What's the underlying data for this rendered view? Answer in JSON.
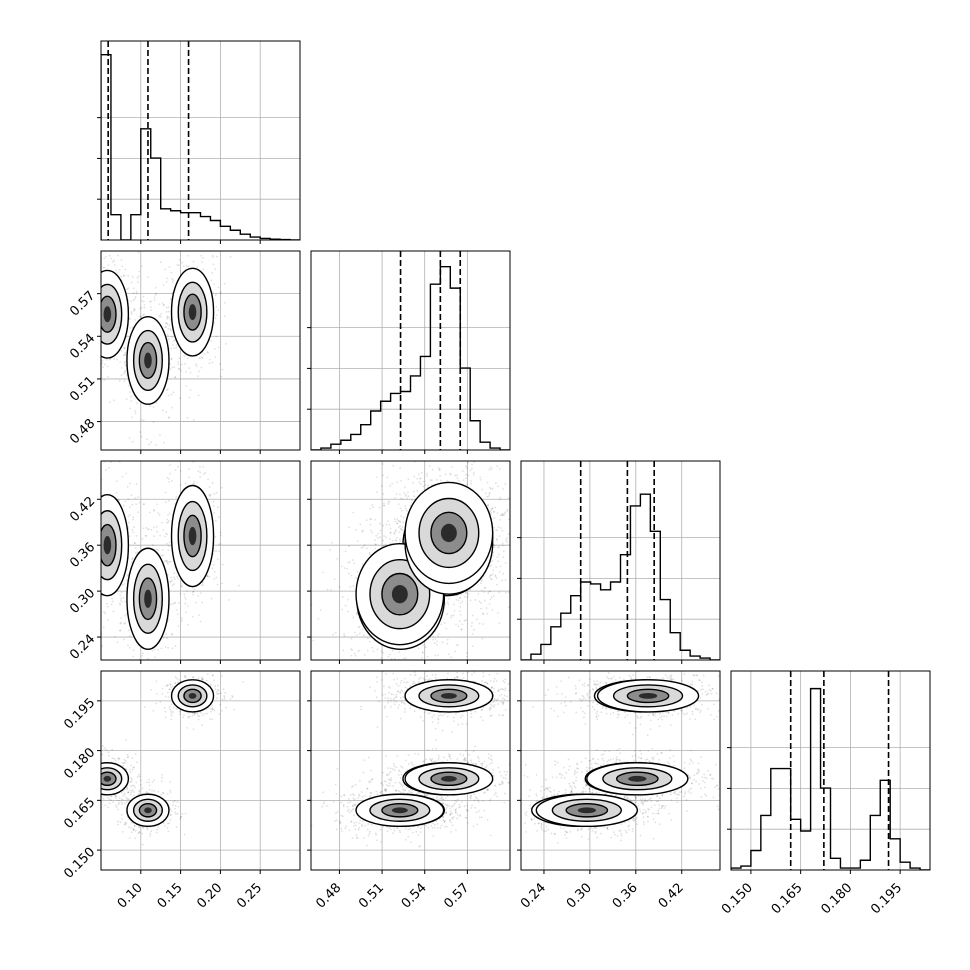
{
  "chart_data": {
    "type": "corner",
    "variables": [
      {
        "range": [
          0.05,
          0.3
        ],
        "ticks": [
          0.1,
          0.15,
          0.2,
          0.25
        ],
        "tick_labels": [
          "0.10",
          "0.15",
          "0.20",
          "0.25"
        ]
      },
      {
        "range": [
          0.46,
          0.6
        ],
        "ticks": [
          0.48,
          0.51,
          0.54,
          0.57
        ],
        "tick_labels": [
          "0.48",
          "0.51",
          "0.54",
          "0.57"
        ]
      },
      {
        "range": [
          0.21,
          0.47
        ],
        "ticks": [
          0.24,
          0.3,
          0.36,
          0.42
        ],
        "tick_labels": [
          "0.24",
          "0.30",
          "0.36",
          "0.42"
        ]
      },
      {
        "range": [
          0.144,
          0.204
        ],
        "ticks": [
          0.15,
          0.165,
          0.18,
          0.195
        ],
        "tick_labels": [
          "0.150",
          "0.165",
          "0.180",
          "0.195"
        ]
      }
    ],
    "quantile_lines": [
      [
        0.059,
        0.109,
        0.16
      ],
      [
        0.523,
        0.551,
        0.565
      ],
      [
        0.288,
        0.349,
        0.384
      ],
      [
        0.162,
        0.172,
        0.1915
      ]
    ],
    "histograms": [
      {
        "bins": [
          0.05,
          0.0625,
          0.075,
          0.0875,
          0.1,
          0.1125,
          0.125,
          0.1375,
          0.15,
          0.1625,
          0.175,
          0.1875,
          0.2,
          0.2125,
          0.225,
          0.2375,
          0.25,
          0.2625,
          0.275,
          0.2875,
          0.3
        ],
        "counts": [
          0.95,
          0.13,
          0.0,
          0.13,
          0.57,
          0.42,
          0.16,
          0.15,
          0.14,
          0.14,
          0.12,
          0.1,
          0.07,
          0.05,
          0.03,
          0.015,
          0.008,
          0.004,
          0.002,
          0.0
        ]
      },
      {
        "bins": [
          0.46,
          0.467,
          0.474,
          0.481,
          0.488,
          0.495,
          0.502,
          0.509,
          0.516,
          0.523,
          0.53,
          0.537,
          0.544,
          0.551,
          0.558,
          0.565,
          0.572,
          0.579,
          0.586,
          0.593,
          0.6
        ],
        "counts": [
          0.0,
          0.01,
          0.03,
          0.05,
          0.08,
          0.13,
          0.2,
          0.25,
          0.29,
          0.3,
          0.38,
          0.48,
          0.85,
          0.94,
          0.83,
          0.42,
          0.15,
          0.04,
          0.01,
          0.0
        ]
      },
      {
        "bins": [
          0.21,
          0.223,
          0.236,
          0.249,
          0.262,
          0.275,
          0.288,
          0.301,
          0.314,
          0.327,
          0.34,
          0.353,
          0.366,
          0.379,
          0.392,
          0.405,
          0.418,
          0.431,
          0.444,
          0.457,
          0.47
        ],
        "counts": [
          0.0,
          0.03,
          0.08,
          0.17,
          0.24,
          0.33,
          0.4,
          0.39,
          0.36,
          0.4,
          0.54,
          0.79,
          0.85,
          0.66,
          0.31,
          0.14,
          0.05,
          0.02,
          0.01,
          0.0
        ]
      },
      {
        "bins": [
          0.144,
          0.147,
          0.15,
          0.153,
          0.156,
          0.159,
          0.162,
          0.165,
          0.168,
          0.171,
          0.174,
          0.177,
          0.18,
          0.183,
          0.186,
          0.189,
          0.192,
          0.195,
          0.198,
          0.201,
          0.204
        ],
        "counts": [
          0.01,
          0.02,
          0.1,
          0.28,
          0.52,
          0.52,
          0.26,
          0.2,
          0.93,
          0.42,
          0.06,
          0.01,
          0.01,
          0.05,
          0.28,
          0.46,
          0.16,
          0.04,
          0.01,
          0.0
        ]
      }
    ],
    "modes": [
      {
        "x": 0.058,
        "y": 0.5555,
        "z": 0.36,
        "w": 0.1715
      },
      {
        "x": 0.109,
        "y": 0.523,
        "z": 0.29,
        "w": 0.162
      },
      {
        "x": 0.165,
        "y": 0.557,
        "z": 0.372,
        "w": 0.1965
      },
      {
        "x": 0.525,
        "y": 0.5225,
        "z": 0.296,
        "w": 0.162
      },
      {
        "x": 0.556,
        "y": 0.557,
        "z": 0.362,
        "w": 0.1715
      },
      {
        "x": 0.556,
        "y": 0.557,
        "z": 0.376,
        "w": 0.1965
      }
    ]
  }
}
